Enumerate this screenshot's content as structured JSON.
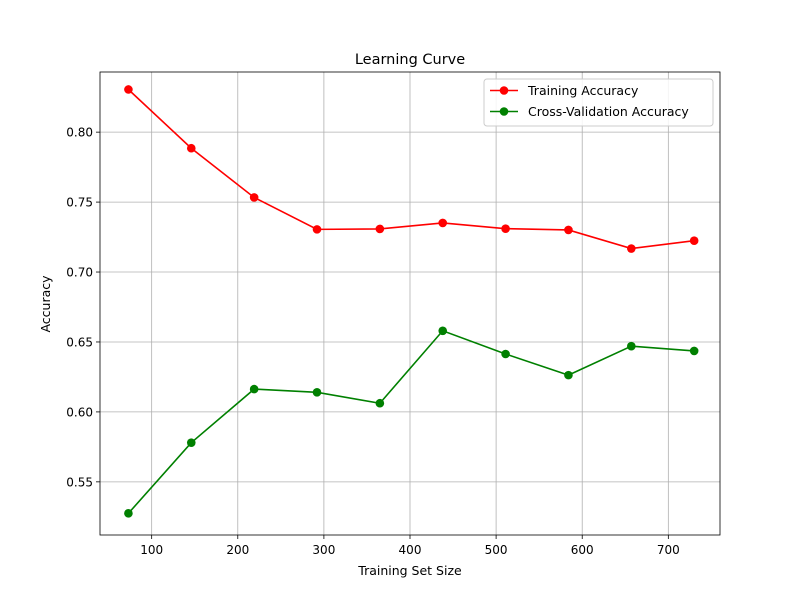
{
  "chart_data": {
    "type": "line",
    "title": "Learning Curve",
    "xlabel": "Training Set Size",
    "ylabel": "Accuracy",
    "xlim": [
      40,
      760
    ],
    "ylim": [
      0.512,
      0.843
    ],
    "x_ticks": [
      100,
      200,
      300,
      400,
      500,
      600,
      700
    ],
    "x_tick_labels": [
      "100",
      "200",
      "300",
      "400",
      "500",
      "600",
      "700"
    ],
    "y_ticks": [
      0.55,
      0.6,
      0.65,
      0.7,
      0.75,
      0.8
    ],
    "y_tick_labels": [
      "0.55",
      "0.60",
      "0.65",
      "0.70",
      "0.75",
      "0.80"
    ],
    "grid": true,
    "legend_position": "top-right",
    "x": [
      73,
      146,
      219,
      292,
      365,
      438,
      511,
      584,
      657,
      730
    ],
    "series": [
      {
        "name": "Training Accuracy",
        "color": "#ff0000",
        "marker": "circle",
        "values": [
          0.8305,
          0.7885,
          0.7533,
          0.7305,
          0.7308,
          0.7351,
          0.731,
          0.7301,
          0.7168,
          0.7224
        ]
      },
      {
        "name": "Cross-Validation Accuracy",
        "color": "#008000",
        "marker": "circle",
        "values": [
          0.5275,
          0.578,
          0.6163,
          0.614,
          0.6062,
          0.658,
          0.6414,
          0.6263,
          0.647,
          0.6436
        ]
      }
    ]
  }
}
